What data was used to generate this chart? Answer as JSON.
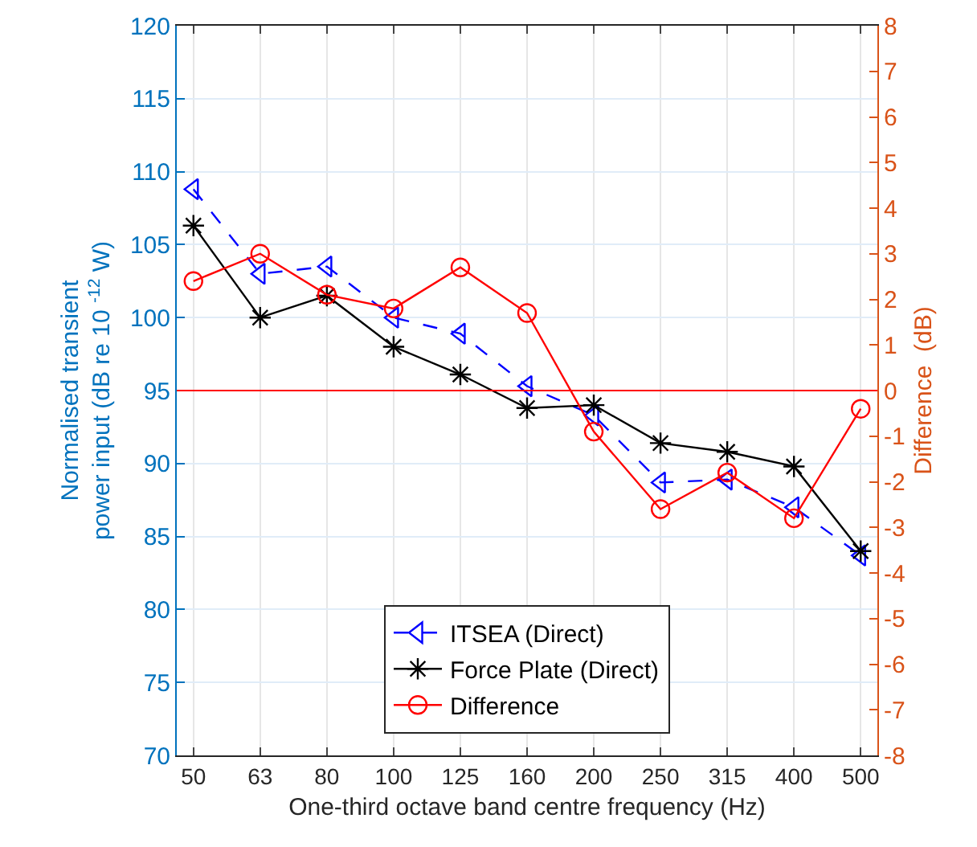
{
  "chart_data": {
    "type": "line",
    "xlabel": "One-third octave band centre frequency (Hz)",
    "ylabel": "Normalised transient\npower input (dB re 10 $^{-12}$ W)",
    "y2label": "Difference  (dB)",
    "categories": [
      "50",
      "63",
      "80",
      "100",
      "125",
      "160",
      "200",
      "250",
      "315",
      "400",
      "500"
    ],
    "series": [
      {
        "name": "ITSEA (Direct)",
        "color": "#0000ff",
        "marker": "triangle",
        "line_style": "dashed",
        "values": [
          108.8,
          103.0,
          103.5,
          100.0,
          98.9,
          95.3,
          93.3,
          88.7,
          88.9,
          87.0,
          83.7
        ]
      },
      {
        "name": "Force Plate (Direct)",
        "color": "#000000",
        "marker": "cross",
        "line_style": "solid",
        "values": [
          106.3,
          100.0,
          101.5,
          98.0,
          96.1,
          93.8,
          94.0,
          91.4,
          90.8,
          89.8,
          84.0
        ]
      },
      {
        "name": "Difference",
        "color": "#ff0000",
        "marker": "circle",
        "line_style": "solid",
        "axis": "y2",
        "values": [
          2.4,
          3.0,
          2.1,
          1.8,
          2.7,
          1.7,
          -0.9,
          -2.6,
          -1.8,
          -2.8,
          -0.4
        ]
      }
    ],
    "ylim": [
      70,
      120
    ],
    "yticks": [
      70,
      75,
      80,
      85,
      90,
      95,
      100,
      105,
      110,
      115,
      120
    ],
    "y2lim": [
      -8,
      8
    ],
    "y2ticks": [
      -8,
      -7,
      -6,
      -5,
      -4,
      -3,
      -2,
      -1,
      0,
      1,
      2,
      3,
      4,
      5,
      6,
      7,
      8
    ],
    "ref_lines": [
      {
        "axis": "y2",
        "value": 0,
        "color": "#ff0000"
      }
    ],
    "grid": true,
    "legend": "bottom"
  }
}
